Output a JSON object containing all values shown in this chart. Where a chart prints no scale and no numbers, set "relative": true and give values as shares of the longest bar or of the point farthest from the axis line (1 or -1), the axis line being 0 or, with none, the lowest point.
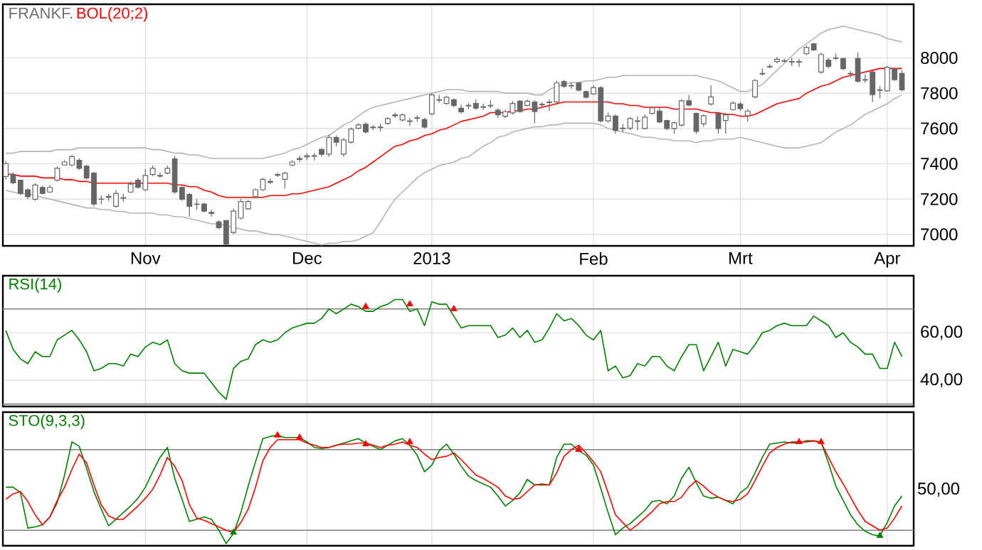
{
  "chart_data": [
    {
      "type": "candlestick",
      "title": "FRANKF.",
      "color": "#666666",
      "grid": true,
      "legend": "top left",
      "categories": [
        null,
        null,
        null,
        null,
        null,
        null,
        null,
        null,
        null,
        null,
        null,
        null,
        null,
        null,
        null,
        null,
        null,
        null,
        null,
        "Nov",
        null,
        null,
        null,
        null,
        null,
        null,
        null,
        null,
        null,
        null,
        null,
        null,
        null,
        null,
        null,
        null,
        null,
        null,
        null,
        null,
        null,
        "Dec",
        null,
        null,
        null,
        null,
        null,
        null,
        null,
        null,
        null,
        null,
        null,
        null,
        null,
        null,
        null,
        null,
        "2013",
        null,
        null,
        null,
        null,
        null,
        null,
        null,
        null,
        null,
        null,
        null,
        null,
        null,
        null,
        null,
        null,
        null,
        null,
        null,
        null,
        null,
        "Feb",
        null,
        null,
        null,
        null,
        null,
        null,
        null,
        null,
        null,
        null,
        null,
        null,
        null,
        null,
        null,
        null,
        null,
        null,
        null,
        "Mrt",
        null,
        null,
        null,
        null,
        null,
        null,
        null,
        null,
        null,
        null,
        null,
        null,
        null,
        null,
        null,
        null,
        null,
        null,
        null,
        "Apr",
        null,
        null
      ],
      "ylim": [
        6935,
        8304
      ],
      "yticks": [
        7000,
        7200,
        7400,
        7600,
        7800,
        8000
      ],
      "ohlc": [
        [
          7328,
          7415,
          7310,
          7401
        ],
        [
          7339,
          7350,
          7285,
          7293
        ],
        [
          7307,
          7310,
          7225,
          7232
        ],
        [
          7253,
          7260,
          7200,
          7213
        ],
        [
          7199,
          7290,
          7190,
          7280
        ],
        [
          7266,
          7275,
          7225,
          7232
        ],
        [
          7240,
          7280,
          7235,
          7266
        ],
        [
          7307,
          7385,
          7300,
          7374
        ],
        [
          7393,
          7420,
          7390,
          7410
        ],
        [
          7393,
          7450,
          7385,
          7441
        ],
        [
          7420,
          7430,
          7365,
          7374
        ],
        [
          7387,
          7395,
          7310,
          7320
        ],
        [
          7347,
          7355,
          7160,
          7172
        ],
        [
          7200,
          7220,
          7170,
          7199
        ],
        [
          7210,
          7230,
          7190,
          7215
        ],
        [
          7159,
          7250,
          7150,
          7232
        ],
        [
          7205,
          7230,
          7185,
          7208
        ],
        [
          7240,
          7300,
          7235,
          7285
        ],
        [
          7307,
          7320,
          7260,
          7266
        ],
        [
          7253,
          7370,
          7245,
          7334
        ],
        [
          7339,
          7390,
          7330,
          7374
        ],
        [
          7330,
          7350,
          7320,
          7334
        ],
        [
          7347,
          7390,
          7340,
          7374
        ],
        [
          7428,
          7445,
          7230,
          7240
        ],
        [
          7266,
          7275,
          7190,
          7199
        ],
        [
          7226,
          7235,
          7100,
          7159
        ],
        [
          7170,
          7200,
          7140,
          7172
        ],
        [
          7172,
          7180,
          7125,
          7132
        ],
        [
          7125,
          7140,
          7100,
          7119
        ],
        [
          7070,
          7080,
          7030,
          7038
        ],
        [
          7078,
          7080,
          6944,
          6944
        ],
        [
          7011,
          7145,
          7000,
          7132
        ],
        [
          7092,
          7200,
          7085,
          7186
        ],
        [
          7145,
          7195,
          7140,
          7186
        ],
        [
          7213,
          7260,
          7205,
          7253
        ],
        [
          7253,
          7320,
          7245,
          7312
        ],
        [
          7295,
          7315,
          7285,
          7300
        ],
        [
          7335,
          7350,
          7325,
          7339
        ],
        [
          7312,
          7355,
          7260,
          7347
        ],
        [
          7393,
          7420,
          7385,
          7410
        ],
        [
          7425,
          7445,
          7410,
          7430
        ],
        [
          7440,
          7460,
          7420,
          7446
        ],
        [
          7443,
          7460,
          7420,
          7446
        ],
        [
          7481,
          7490,
          7440,
          7454
        ],
        [
          7455,
          7565,
          7440,
          7549
        ],
        [
          7549,
          7560,
          7500,
          7522
        ],
        [
          7455,
          7545,
          7440,
          7535
        ],
        [
          7522,
          7605,
          7515,
          7597
        ],
        [
          7602,
          7630,
          7595,
          7620
        ],
        [
          7624,
          7635,
          7570,
          7581
        ],
        [
          7605,
          7620,
          7590,
          7608
        ],
        [
          7605,
          7625,
          7585,
          7608
        ],
        [
          7629,
          7665,
          7620,
          7656
        ],
        [
          7672,
          7690,
          7660,
          7677
        ],
        [
          7648,
          7685,
          7640,
          7677
        ],
        [
          7640,
          7660,
          7615,
          7643
        ],
        [
          7658,
          7675,
          7640,
          7661
        ],
        [
          7651,
          7660,
          7600,
          7608
        ],
        [
          7683,
          7800,
          7675,
          7790
        ],
        [
          7760,
          7790,
          7745,
          7763
        ],
        [
          7742,
          7785,
          7735,
          7777
        ],
        [
          7763,
          7770,
          7720,
          7731
        ],
        [
          7715,
          7735,
          7685,
          7694
        ],
        [
          7728,
          7745,
          7710,
          7731
        ],
        [
          7742,
          7765,
          7705,
          7715
        ],
        [
          7720,
          7740,
          7705,
          7723
        ],
        [
          7728,
          7760,
          7715,
          7731
        ],
        [
          7704,
          7715,
          7660,
          7677
        ],
        [
          7669,
          7705,
          7660,
          7696
        ],
        [
          7688,
          7755,
          7680,
          7742
        ],
        [
          7755,
          7760,
          7690,
          7696
        ],
        [
          7731,
          7765,
          7725,
          7755
        ],
        [
          7750,
          7760,
          7630,
          7696
        ],
        [
          7734,
          7750,
          7720,
          7737
        ],
        [
          7747,
          7765,
          7700,
          7750
        ],
        [
          7750,
          7870,
          7745,
          7858
        ],
        [
          7866,
          7875,
          7830,
          7839
        ],
        [
          7841,
          7860,
          7825,
          7844
        ],
        [
          7858,
          7865,
          7810,
          7817
        ],
        [
          7809,
          7815,
          7770,
          7777
        ],
        [
          7796,
          7845,
          7790,
          7831
        ],
        [
          7831,
          7840,
          7635,
          7643
        ],
        [
          7643,
          7690,
          7635,
          7670
        ],
        [
          7670,
          7680,
          7570,
          7589
        ],
        [
          7599,
          7625,
          7580,
          7602
        ],
        [
          7602,
          7665,
          7590,
          7656
        ],
        [
          7640,
          7670,
          7590,
          7643
        ],
        [
          7600,
          7680,
          7595,
          7664
        ],
        [
          7685,
          7725,
          7680,
          7717
        ],
        [
          7699,
          7725,
          7630,
          7637
        ],
        [
          7645,
          7650,
          7590,
          7600
        ],
        [
          7600,
          7640,
          7570,
          7632
        ],
        [
          7619,
          7765,
          7610,
          7757
        ],
        [
          7757,
          7790,
          7725,
          7733
        ],
        [
          7685,
          7690,
          7570,
          7584
        ],
        [
          7627,
          7680,
          7610,
          7672
        ],
        [
          7739,
          7845,
          7730,
          7779
        ],
        [
          7685,
          7690,
          7570,
          7600
        ],
        [
          7645,
          7690,
          7570,
          7677
        ],
        [
          7707,
          7755,
          7700,
          7744
        ],
        [
          7739,
          7750,
          7700,
          7712
        ],
        [
          7672,
          7710,
          7640,
          7699
        ],
        [
          7779,
          7880,
          7770,
          7872
        ],
        [
          7909,
          7940,
          7900,
          7912
        ],
        [
          7949,
          7965,
          7940,
          7952
        ],
        [
          7979,
          8005,
          7970,
          7992
        ],
        [
          7981,
          7995,
          7975,
          7984
        ],
        [
          7976,
          8000,
          7955,
          7979
        ],
        [
          7976,
          7995,
          7950,
          7979
        ],
        [
          8024,
          8070,
          8015,
          8059
        ],
        [
          8080,
          8085,
          8040,
          8045
        ],
        [
          7920,
          8030,
          7910,
          8019
        ],
        [
          7987,
          8000,
          7940,
          7952
        ],
        [
          7997,
          8025,
          7990,
          8000
        ],
        [
          7997,
          8000,
          7930,
          7939
        ],
        [
          7909,
          7925,
          7890,
          7912
        ],
        [
          7997,
          8030,
          7860,
          7867
        ],
        [
          7874,
          7905,
          7860,
          7877
        ],
        [
          7920,
          7925,
          7750,
          7792
        ],
        [
          7816,
          7840,
          7770,
          7819
        ],
        [
          7813,
          7955,
          7810,
          7947
        ],
        [
          7939,
          7945,
          7870,
          7877
        ],
        [
          7912,
          7930,
          7810,
          7819
        ]
      ],
      "series": [
        {
          "type": "line",
          "color": "#b4b4b4",
          "values": [
            7460,
            7460,
            7470,
            7470,
            7470,
            7470,
            7470,
            7480,
            7480,
            7480,
            7490,
            7490,
            7490,
            7490,
            7490,
            7490,
            7490,
            7490,
            7490,
            7490,
            7480,
            7480,
            7470,
            7460,
            7460,
            7450,
            7450,
            7440,
            7430,
            7430,
            7430,
            7430,
            7430,
            7430,
            7430,
            7430,
            7440,
            7450,
            7460,
            7480,
            7490,
            7510,
            7530,
            7550,
            7560,
            7590,
            7620,
            7640,
            7670,
            7700,
            7720,
            7730,
            7740,
            7750,
            7760,
            7770,
            7780,
            7790,
            7800,
            7810,
            7820,
            7820,
            7820,
            7810,
            7810,
            7810,
            7810,
            7810,
            7800,
            7800,
            7800,
            7800,
            7790,
            7790,
            7820,
            7840,
            7850,
            7860,
            7860,
            7870,
            7870,
            7880,
            7890,
            7890,
            7900,
            7900,
            7900,
            7900,
            7900,
            7900,
            7900,
            7900,
            7900,
            7900,
            7900,
            7890,
            7880,
            7870,
            7850,
            7830,
            7810,
            7810,
            7830,
            7850,
            7890,
            7930,
            7970,
            8010,
            8050,
            8080,
            8110,
            8140,
            8160,
            8170,
            8180,
            8170,
            8160,
            8150,
            8140,
            8130,
            8110,
            8100,
            8090
          ]
        },
        {
          "type": "line",
          "color": "#b4b4b4",
          "values": [
            7250,
            7240,
            7230,
            7230,
            7220,
            7210,
            7200,
            7190,
            7180,
            7170,
            7160,
            7150,
            7150,
            7140,
            7140,
            7130,
            7130,
            7120,
            7120,
            7120,
            7120,
            7110,
            7110,
            7100,
            7100,
            7090,
            7080,
            7070,
            7060,
            7060,
            7050,
            7040,
            7030,
            7020,
            7020,
            7010,
            7000,
            7000,
            6990,
            6980,
            6970,
            6960,
            6950,
            6940,
            6950,
            6950,
            6960,
            6960,
            6970,
            6990,
            7010,
            7070,
            7140,
            7200,
            7240,
            7280,
            7320,
            7350,
            7370,
            7390,
            7400,
            7410,
            7430,
            7440,
            7470,
            7500,
            7520,
            7550,
            7560,
            7580,
            7590,
            7600,
            7610,
            7610,
            7620,
            7620,
            7630,
            7630,
            7630,
            7630,
            7630,
            7620,
            7600,
            7590,
            7580,
            7570,
            7560,
            7550,
            7550,
            7540,
            7540,
            7530,
            7530,
            7530,
            7520,
            7530,
            7530,
            7540,
            7540,
            7540,
            7550,
            7540,
            7530,
            7520,
            7510,
            7500,
            7490,
            7490,
            7490,
            7500,
            7510,
            7520,
            7550,
            7580,
            7600,
            7620,
            7650,
            7680,
            7700,
            7720,
            7740,
            7770,
            7790
          ]
        },
        {
          "type": "line",
          "name": "BOL(20;2)",
          "color": "#ff0000",
          "values": [
            7340,
            7340,
            7330,
            7330,
            7330,
            7320,
            7320,
            7320,
            7310,
            7310,
            7300,
            7300,
            7290,
            7290,
            7290,
            7290,
            7290,
            7290,
            7290,
            7290,
            7290,
            7290,
            7290,
            7280,
            7280,
            7270,
            7270,
            7250,
            7240,
            7220,
            7210,
            7210,
            7210,
            7210,
            7210,
            7210,
            7220,
            7220,
            7220,
            7230,
            7230,
            7240,
            7250,
            7260,
            7270,
            7290,
            7310,
            7330,
            7360,
            7380,
            7410,
            7440,
            7470,
            7500,
            7510,
            7530,
            7540,
            7560,
            7570,
            7590,
            7600,
            7620,
            7640,
            7650,
            7660,
            7670,
            7690,
            7690,
            7690,
            7700,
            7700,
            7710,
            7710,
            7720,
            7730,
            7740,
            7750,
            7750,
            7750,
            7750,
            7750,
            7750,
            7750,
            7740,
            7740,
            7730,
            7730,
            7720,
            7720,
            7720,
            7720,
            7710,
            7710,
            7710,
            7710,
            7700,
            7690,
            7690,
            7680,
            7680,
            7670,
            7670,
            7680,
            7700,
            7720,
            7740,
            7750,
            7760,
            7770,
            7800,
            7820,
            7840,
            7850,
            7870,
            7890,
            7900,
            7910,
            7920,
            7930,
            7940,
            7940,
            7940,
            7940
          ]
        }
      ]
    },
    {
      "type": "line",
      "grid": true,
      "legend": "top left",
      "tick_labels": "y",
      "categories": [
        null,
        null,
        null,
        null,
        null,
        null,
        null,
        null,
        null,
        null,
        null,
        null,
        null,
        null,
        null,
        null,
        null,
        null,
        null,
        null,
        null,
        null,
        null,
        null,
        null,
        null,
        null,
        null,
        null,
        null,
        null,
        null,
        null,
        null,
        null,
        null,
        null,
        null,
        null,
        null,
        null,
        null,
        null,
        null,
        null,
        null,
        null,
        null,
        null,
        null,
        null,
        null,
        null,
        null,
        null,
        null,
        null,
        null,
        null,
        null,
        null,
        null,
        null,
        null,
        null,
        null,
        null,
        null,
        null,
        null,
        null,
        null,
        null,
        null,
        null,
        null,
        null,
        null,
        null,
        null,
        null,
        null,
        null,
        null,
        null,
        null,
        null,
        null,
        null,
        null,
        null,
        null,
        null,
        null,
        null,
        null,
        null,
        null,
        null,
        null,
        null,
        null,
        null,
        null,
        null,
        null,
        null,
        null,
        null,
        null,
        null,
        null,
        null,
        null,
        null,
        null,
        null,
        null,
        null,
        null,
        null,
        null,
        null
      ],
      "ylim": [
        29,
        84
      ],
      "yticks": [
        {
          "value": 40,
          "label": "40,00"
        },
        {
          "value": 60,
          "label": "60,00"
        }
      ],
      "ref_lines": [
        {
          "axis": "y",
          "value": 70,
          "color": "#808080"
        },
        {
          "axis": "y",
          "value": 30,
          "color": "#808080"
        }
      ],
      "series": [
        {
          "name": "RSI(14)",
          "color": "#008000",
          "values": [
            61,
            53,
            49,
            47,
            52,
            50,
            50,
            57,
            59,
            61,
            57,
            52,
            44,
            45,
            47,
            47,
            46,
            51,
            50,
            54,
            56,
            55,
            57,
            47,
            44,
            43,
            43,
            43,
            39,
            35,
            32,
            45,
            48,
            49,
            55,
            57,
            56,
            57,
            60,
            62,
            63,
            64,
            64,
            66,
            70,
            68,
            70,
            72,
            71,
            69,
            69,
            71,
            72,
            74,
            74,
            69,
            70,
            63,
            73,
            72,
            72,
            67,
            62,
            63,
            63,
            63,
            63,
            58,
            59,
            62,
            58,
            61,
            56,
            57,
            62,
            68,
            65,
            66,
            63,
            59,
            57,
            61,
            44,
            46,
            41,
            42,
            47,
            46,
            50,
            50,
            46,
            44,
            50,
            55,
            55,
            44,
            50,
            56,
            46,
            53,
            52,
            51,
            55,
            60,
            61,
            63,
            64,
            63,
            63,
            63,
            67,
            65,
            63,
            58,
            60,
            56,
            54,
            51,
            51,
            45,
            45,
            56,
            50
          ]
        },
        {
          "type": "scatter",
          "marker": "triangle",
          "color": "#ff0000",
          "values": [
            null,
            null,
            null,
            null,
            null,
            null,
            null,
            null,
            null,
            null,
            null,
            null,
            null,
            null,
            null,
            null,
            null,
            null,
            null,
            null,
            null,
            null,
            null,
            null,
            null,
            null,
            null,
            null,
            null,
            null,
            null,
            null,
            null,
            null,
            null,
            null,
            null,
            null,
            null,
            null,
            null,
            null,
            null,
            null,
            null,
            null,
            null,
            null,
            null,
            71,
            null,
            null,
            null,
            null,
            null,
            72,
            null,
            null,
            null,
            null,
            null,
            70,
            null,
            null,
            null,
            null,
            null,
            null,
            null,
            null,
            null,
            null,
            null,
            null,
            null,
            null,
            null,
            null,
            null,
            null,
            null,
            null,
            null,
            null,
            null,
            null,
            null,
            null,
            null,
            null,
            null,
            null,
            null,
            null,
            null,
            null,
            null,
            null,
            null,
            null,
            null,
            null,
            null,
            null,
            null,
            null,
            null,
            null,
            null,
            null,
            null,
            null,
            null,
            null,
            null,
            null,
            null,
            null,
            null,
            null,
            null,
            null,
            null
          ]
        }
      ]
    },
    {
      "type": "line",
      "relative": true,
      "grid": "x",
      "legend": "top left",
      "tick_labels": false,
      "categories": [
        null,
        null,
        null,
        null,
        null,
        null,
        null,
        null,
        null,
        null,
        null,
        null,
        null,
        null,
        null,
        null,
        null,
        null,
        null,
        null,
        null,
        null,
        null,
        null,
        null,
        null,
        null,
        null,
        null,
        null,
        null,
        null,
        null,
        null,
        null,
        null,
        null,
        null,
        null,
        null,
        null,
        null,
        null,
        null,
        null,
        null,
        null,
        null,
        null,
        null,
        null,
        null,
        null,
        null,
        null,
        null,
        null,
        null,
        null,
        null,
        null,
        null,
        null,
        null,
        null,
        null,
        null,
        null,
        null,
        null,
        null,
        null,
        null,
        null,
        null,
        null,
        null,
        null,
        null,
        null,
        null,
        null,
        null,
        null,
        null,
        null,
        null,
        null,
        null,
        null,
        null,
        null,
        null,
        null,
        null,
        null,
        null,
        null,
        null,
        null,
        null,
        null,
        null,
        null,
        null,
        null,
        null,
        null,
        null,
        null,
        null,
        null,
        null,
        null,
        null,
        null,
        null,
        null,
        null,
        null,
        null,
        null,
        null
      ],
      "annotations": [
        "50,00"
      ],
      "ref_lines": [
        {
          "axis": "y",
          "value": 0.87,
          "color": "#808080"
        },
        {
          "axis": "y",
          "value": 0.14,
          "color": "#808080"
        }
      ],
      "series": [
        {
          "name": "STO(9,3,3)",
          "color": "#008000",
          "values": [
            0.53,
            0.53,
            0.48,
            0.16,
            0.17,
            0.19,
            0.26,
            0.39,
            0.64,
            0.94,
            0.9,
            0.7,
            0.49,
            0.33,
            0.18,
            0.24,
            0.3,
            0.36,
            0.43,
            0.53,
            0.67,
            0.8,
            0.89,
            0.61,
            0.42,
            0.22,
            0.24,
            0.26,
            0.24,
            0.14,
            0.02,
            0.11,
            0.3,
            0.54,
            0.76,
            0.97,
            0.99,
            1,
            0.98,
            0.98,
            0.98,
            0.94,
            0.89,
            0.88,
            0.89,
            0.91,
            0.93,
            0.95,
            0.97,
            0.93,
            0.9,
            0.87,
            0.91,
            0.95,
            0.97,
            0.91,
            0.82,
            0.67,
            0.73,
            0.86,
            0.92,
            0.83,
            0.72,
            0.63,
            0.59,
            0.56,
            0.53,
            0.45,
            0.36,
            0.41,
            0.48,
            0.6,
            0.55,
            0.55,
            0.55,
            0.8,
            0.92,
            0.92,
            0.86,
            0.82,
            0.73,
            0.52,
            0.3,
            0.1,
            0.16,
            0.2,
            0.26,
            0.32,
            0.4,
            0.41,
            0.38,
            0.45,
            0.61,
            0.71,
            0.57,
            0.45,
            0.43,
            0.44,
            0.41,
            0.38,
            0.48,
            0.53,
            0.66,
            0.8,
            0.92,
            0.93,
            0.94,
            0.93,
            0.93,
            0.95,
            0.95,
            0.94,
            0.75,
            0.54,
            0.41,
            0.28,
            0.19,
            0.13,
            0.1,
            0.09,
            0.21,
            0.36,
            0.45
          ]
        },
        {
          "color": "#ff0000",
          "values": [
            0.42,
            0.47,
            0.49,
            0.4,
            0.28,
            0.19,
            0.26,
            0.41,
            0.53,
            0.69,
            0.83,
            0.75,
            0.55,
            0.37,
            0.27,
            0.24,
            0.24,
            0.3,
            0.36,
            0.43,
            0.51,
            0.64,
            0.8,
            0.72,
            0.59,
            0.37,
            0.25,
            0.23,
            0.2,
            0.17,
            0.14,
            0.12,
            0.21,
            0.33,
            0.53,
            0.77,
            0.89,
            0.96,
            0.96,
            0.96,
            0.96,
            0.93,
            0.91,
            0.89,
            0.89,
            0.91,
            0.92,
            0.92,
            0.93,
            0.93,
            0.91,
            0.89,
            0.91,
            0.92,
            0.94,
            0.91,
            0.89,
            0.83,
            0.78,
            0.8,
            0.81,
            0.84,
            0.78,
            0.71,
            0.64,
            0.61,
            0.57,
            0.53,
            0.45,
            0.42,
            0.43,
            0.49,
            0.55,
            0.56,
            0.55,
            0.66,
            0.81,
            0.87,
            0.91,
            0.84,
            0.76,
            0.67,
            0.48,
            0.28,
            0.21,
            0.14,
            0.19,
            0.25,
            0.31,
            0.38,
            0.4,
            0.4,
            0.44,
            0.53,
            0.59,
            0.54,
            0.48,
            0.44,
            0.41,
            0.4,
            0.42,
            0.47,
            0.59,
            0.72,
            0.84,
            0.89,
            0.92,
            0.94,
            0.94,
            0.94,
            0.95,
            0.93,
            0.8,
            0.67,
            0.56,
            0.44,
            0.32,
            0.22,
            0.18,
            0.14,
            0.16,
            0.25,
            0.36
          ]
        },
        {
          "type": "scatter",
          "marker": "triangle",
          "color": "#ff0000",
          "values": [
            null,
            null,
            null,
            null,
            null,
            null,
            null,
            null,
            null,
            null,
            null,
            null,
            null,
            null,
            null,
            null,
            null,
            null,
            null,
            null,
            null,
            null,
            null,
            null,
            null,
            null,
            null,
            null,
            null,
            null,
            null,
            null,
            null,
            null,
            null,
            null,
            null,
            1,
            null,
            null,
            0.98,
            null,
            null,
            null,
            null,
            null,
            null,
            null,
            null,
            0.92,
            null,
            null,
            null,
            null,
            null,
            0.94,
            null,
            null,
            null,
            null,
            null,
            null,
            null,
            null,
            null,
            null,
            null,
            null,
            null,
            null,
            null,
            null,
            null,
            null,
            null,
            null,
            null,
            null,
            0.87,
            null,
            null,
            null,
            null,
            null,
            null,
            null,
            null,
            null,
            null,
            null,
            null,
            null,
            null,
            null,
            null,
            null,
            null,
            null,
            null,
            null,
            null,
            null,
            null,
            null,
            null,
            null,
            null,
            null,
            0.94,
            null,
            null,
            0.94,
            null,
            null,
            null,
            null,
            null,
            null,
            null,
            null,
            null,
            null,
            null
          ]
        },
        {
          "type": "scatter",
          "marker": "triangle",
          "color": "#008000",
          "values": [
            null,
            null,
            null,
            null,
            null,
            null,
            null,
            null,
            null,
            null,
            null,
            null,
            null,
            null,
            null,
            null,
            null,
            null,
            null,
            null,
            null,
            null,
            null,
            null,
            null,
            null,
            null,
            null,
            null,
            null,
            null,
            0.12,
            null,
            null,
            null,
            null,
            null,
            null,
            null,
            null,
            null,
            null,
            null,
            null,
            null,
            null,
            null,
            null,
            null,
            null,
            null,
            null,
            null,
            null,
            null,
            null,
            null,
            null,
            null,
            null,
            null,
            null,
            null,
            null,
            null,
            null,
            null,
            null,
            null,
            null,
            null,
            null,
            null,
            null,
            null,
            null,
            null,
            null,
            null,
            null,
            null,
            null,
            null,
            null,
            null,
            null,
            null,
            null,
            null,
            null,
            null,
            null,
            null,
            null,
            null,
            null,
            null,
            null,
            null,
            null,
            null,
            null,
            null,
            null,
            null,
            null,
            null,
            null,
            null,
            null,
            null,
            null,
            null,
            null,
            null,
            null,
            null,
            null,
            null,
            0.09,
            null,
            null,
            null
          ]
        }
      ]
    }
  ]
}
